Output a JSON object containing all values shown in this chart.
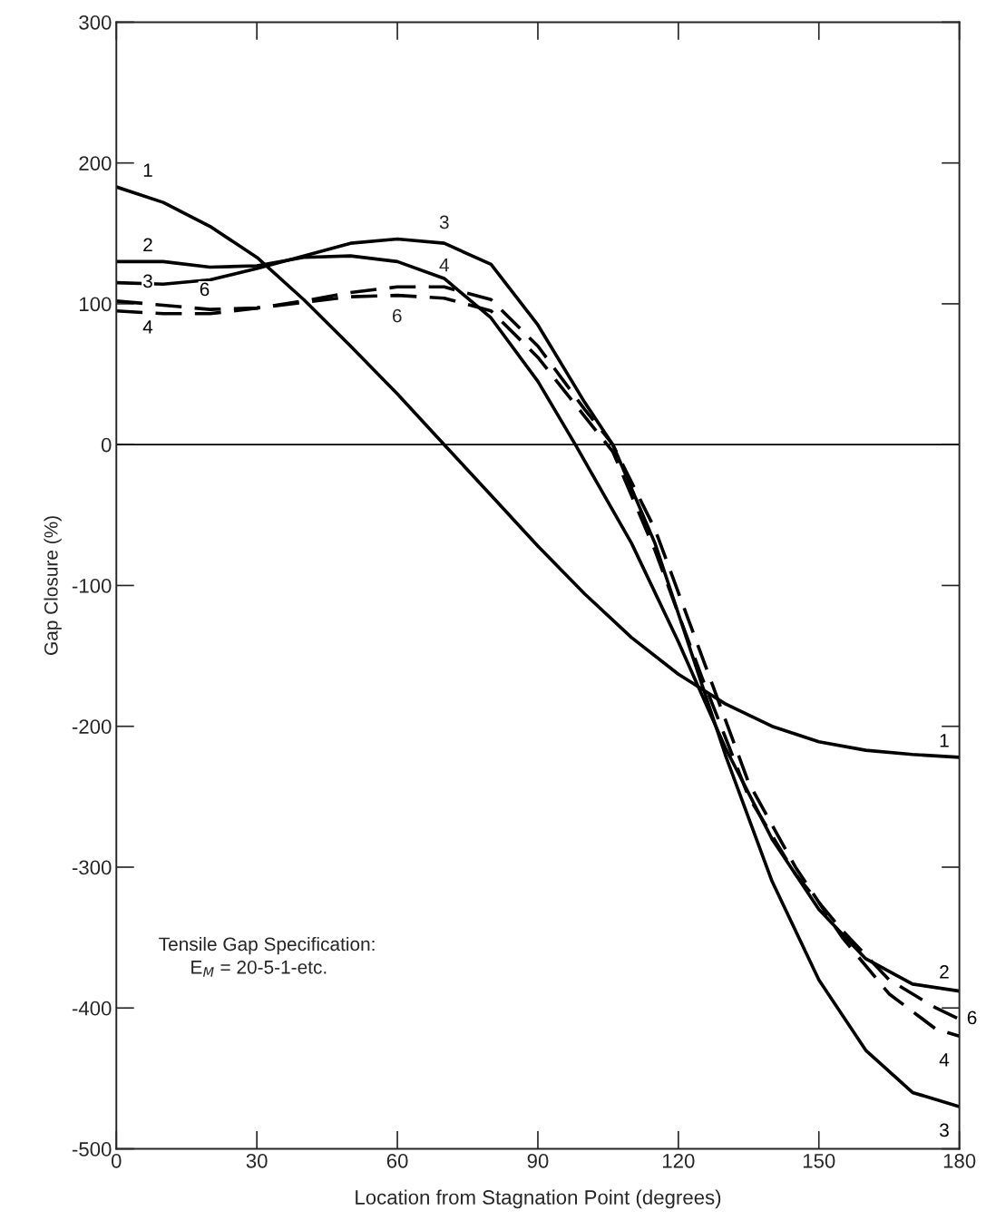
{
  "chart_data": {
    "type": "line",
    "xlabel": "Location from Stagnation Point (degrees)",
    "ylabel": "Gap Closure (%)",
    "xlim": [
      0,
      180
    ],
    "xticks": [
      0,
      30,
      60,
      90,
      120,
      150,
      180
    ],
    "ylim": [
      -500,
      300
    ],
    "yticks": [
      -500,
      -400,
      -300,
      -200,
      -100,
      0,
      100,
      200,
      300
    ],
    "grid": false,
    "marker": "none",
    "ref_lines": [
      {
        "axis": "y",
        "value": 0,
        "color": "#000000",
        "line_style": "solid"
      }
    ],
    "series": [
      {
        "name": "1",
        "color": "#000000",
        "line_style": "solid",
        "x": [
          0,
          10,
          20,
          30,
          40,
          50,
          60,
          70,
          80,
          90,
          100,
          110,
          120,
          130,
          140,
          150,
          160,
          170,
          180
        ],
        "values": [
          183,
          172,
          155,
          133,
          103,
          70,
          36,
          0,
          -36,
          -72,
          -106,
          -137,
          -163,
          -184,
          -200,
          -211,
          -217,
          -220,
          -222
        ]
      },
      {
        "name": "2",
        "color": "#000000",
        "line_style": "solid",
        "x": [
          0,
          10,
          20,
          30,
          40,
          50,
          60,
          70,
          80,
          90,
          98,
          110,
          120,
          130,
          140,
          150,
          160,
          170,
          180
        ],
        "values": [
          130,
          130,
          126,
          127,
          133,
          134,
          130,
          118,
          90,
          45,
          0,
          -70,
          -140,
          -215,
          -280,
          -330,
          -365,
          -383,
          -388
        ]
      },
      {
        "name": "3",
        "color": "#000000",
        "line_style": "solid",
        "x": [
          0,
          10,
          20,
          30,
          40,
          50,
          60,
          70,
          80,
          90,
          100,
          106,
          115,
          120,
          130,
          140,
          150,
          160,
          170,
          180
        ],
        "values": [
          115,
          114,
          117,
          125,
          134,
          143,
          146,
          143,
          128,
          85,
          30,
          0,
          -70,
          -120,
          -220,
          -310,
          -380,
          -430,
          -460,
          -470
        ]
      },
      {
        "name": "4",
        "color": "#000000",
        "line_style": "dashed",
        "x": [
          0,
          10,
          20,
          30,
          40,
          50,
          60,
          70,
          80,
          90,
          100,
          106,
          115,
          125,
          135,
          145,
          155,
          165,
          175,
          180
        ],
        "values": [
          95,
          93,
          93,
          97,
          102,
          108,
          112,
          112,
          103,
          70,
          25,
          0,
          -60,
          -150,
          -240,
          -300,
          -350,
          -390,
          -415,
          -420
        ]
      },
      {
        "name": "6",
        "color": "#000000",
        "line_style": "dashed",
        "x": [
          0,
          10,
          20,
          30,
          40,
          50,
          60,
          70,
          80,
          90,
          100,
          106,
          115,
          125,
          135,
          145,
          155,
          165,
          175,
          180
        ],
        "values": [
          102,
          99,
          96,
          97,
          101,
          105,
          106,
          104,
          95,
          62,
          20,
          -5,
          -75,
          -165,
          -250,
          -305,
          -345,
          -380,
          -400,
          -408
        ]
      }
    ],
    "annotations": [
      "3",
      "4",
      "6",
      "Tensile Gap Specification:\n      E$_{M}$ = 20-5-1-etc."
    ]
  }
}
